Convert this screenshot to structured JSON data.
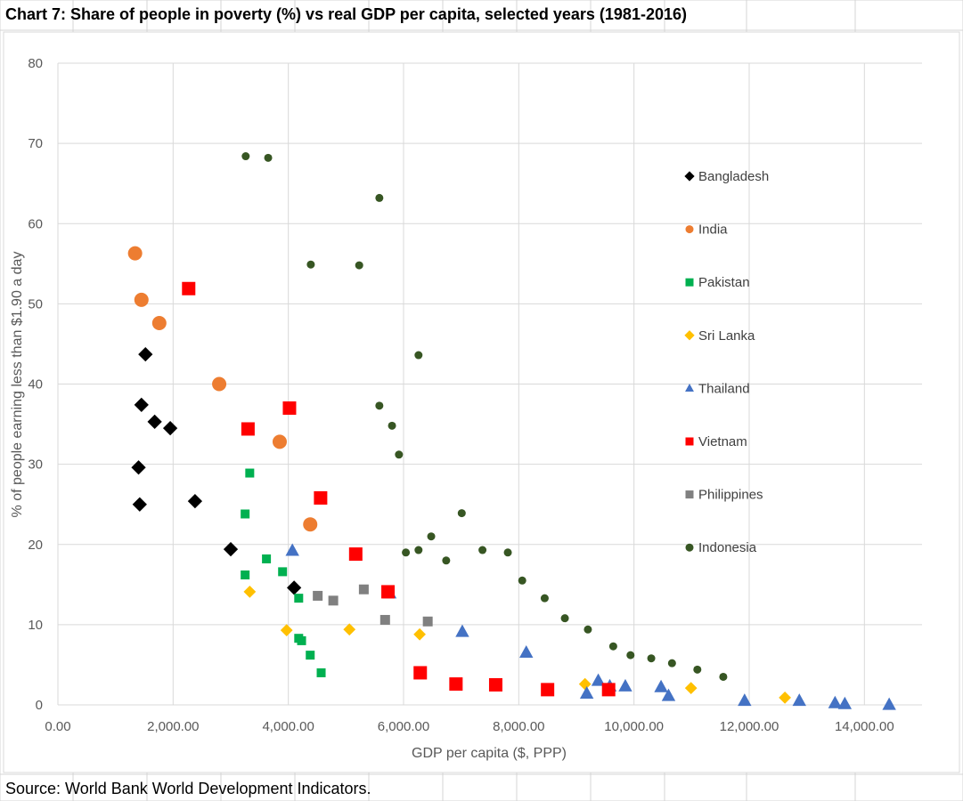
{
  "title": "Chart 7: Share of people in poverty (%) vs real GDP per capita, selected years (1981-2016)",
  "source": "Source: World Bank World Development Indicators.",
  "chart_data": {
    "type": "scatter",
    "title": "Chart 7: Share of people in poverty (%) vs real GDP per capita, selected years (1981-2016)",
    "xlabel": "GDP per capita ($, PPP)",
    "ylabel": "% of people earning less than $1.90 a day",
    "xlim": [
      0,
      15000
    ],
    "ylim": [
      0,
      80
    ],
    "x_ticks": [
      0,
      2000,
      4000,
      6000,
      8000,
      10000,
      12000,
      14000
    ],
    "x_tick_labels": [
      "0.00",
      "2,000.00",
      "4,000.00",
      "6,000.00",
      "8,000.00",
      "10,000.00",
      "12,000.00",
      "14,000.00"
    ],
    "y_ticks": [
      0,
      10,
      20,
      30,
      40,
      50,
      60,
      70,
      80
    ],
    "y_tick_labels": [
      "0",
      "10",
      "20",
      "30",
      "40",
      "50",
      "60",
      "70",
      "80"
    ],
    "grid": true,
    "legend_position": "right",
    "series": [
      {
        "name": "Bangladesh",
        "marker": "diamond",
        "color": "#000000",
        "points": [
          [
            1520,
            43.7
          ],
          [
            1450,
            37.4
          ],
          [
            1680,
            35.3
          ],
          [
            1950,
            34.5
          ],
          [
            1400,
            29.6
          ],
          [
            1420,
            25.0
          ],
          [
            2380,
            25.4
          ],
          [
            3000,
            19.4
          ],
          [
            4100,
            14.6
          ]
        ]
      },
      {
        "name": "India",
        "marker": "circle",
        "color": "#ED7D31",
        "points": [
          [
            1340,
            56.3
          ],
          [
            1450,
            50.5
          ],
          [
            1760,
            47.6
          ],
          [
            2800,
            40.0
          ],
          [
            3850,
            32.8
          ],
          [
            4380,
            22.5
          ]
        ]
      },
      {
        "name": "Pakistan",
        "marker": "square",
        "color": "#00B050",
        "points": [
          [
            3330,
            28.9
          ],
          [
            3250,
            23.8
          ],
          [
            3620,
            18.2
          ],
          [
            3900,
            16.6
          ],
          [
            3250,
            16.2
          ],
          [
            4180,
            13.3
          ],
          [
            4180,
            8.3
          ],
          [
            4230,
            8.0
          ],
          [
            4380,
            6.2
          ],
          [
            4570,
            4.0
          ]
        ]
      },
      {
        "name": "Sri Lanka",
        "marker": "diamond",
        "color": "#FFC000",
        "points": [
          [
            3330,
            14.1
          ],
          [
            3970,
            9.3
          ],
          [
            5060,
            9.4
          ],
          [
            6280,
            8.8
          ],
          [
            9150,
            2.6
          ],
          [
            10990,
            2.1
          ],
          [
            12620,
            0.9
          ]
        ]
      },
      {
        "name": "Thailand",
        "marker": "triangle",
        "color": "#4472C4",
        "points": [
          [
            4070,
            19.2
          ],
          [
            5760,
            13.9
          ],
          [
            7020,
            9.1
          ],
          [
            8130,
            6.5
          ],
          [
            9380,
            3.0
          ],
          [
            9580,
            2.3
          ],
          [
            9850,
            2.3
          ],
          [
            10470,
            2.2
          ],
          [
            9180,
            1.4
          ],
          [
            10600,
            1.1
          ],
          [
            11920,
            0.5
          ],
          [
            12870,
            0.5
          ],
          [
            13490,
            0.2
          ],
          [
            13660,
            0.1
          ],
          [
            14430,
            0.0
          ]
        ]
      },
      {
        "name": "Vietnam",
        "marker": "square",
        "color": "#FF0000",
        "points": [
          [
            2270,
            51.9
          ],
          [
            4020,
            37.0
          ],
          [
            3300,
            34.4
          ],
          [
            4560,
            25.8
          ],
          [
            5170,
            18.8
          ],
          [
            5730,
            14.1
          ],
          [
            6290,
            4.0
          ],
          [
            6910,
            2.6
          ],
          [
            7600,
            2.5
          ],
          [
            8500,
            1.9
          ],
          [
            9560,
            1.9
          ]
        ]
      },
      {
        "name": "Philippines",
        "marker": "square",
        "color": "#808080",
        "points": [
          [
            5310,
            14.4
          ],
          [
            4510,
            13.6
          ],
          [
            4780,
            13.0
          ],
          [
            5680,
            10.6
          ],
          [
            6420,
            10.4
          ]
        ]
      },
      {
        "name": "Indonesia",
        "marker": "circle",
        "color": "#375623",
        "points": [
          [
            3260,
            68.4
          ],
          [
            3650,
            68.2
          ],
          [
            5580,
            63.2
          ],
          [
            4390,
            54.9
          ],
          [
            5230,
            54.8
          ],
          [
            6260,
            43.6
          ],
          [
            5580,
            37.3
          ],
          [
            5800,
            34.8
          ],
          [
            5920,
            31.2
          ],
          [
            7010,
            23.9
          ],
          [
            6480,
            21.0
          ],
          [
            6040,
            19.0
          ],
          [
            6260,
            19.3
          ],
          [
            6740,
            18.0
          ],
          [
            7370,
            19.3
          ],
          [
            7810,
            19.0
          ],
          [
            8060,
            15.5
          ],
          [
            8450,
            13.3
          ],
          [
            8800,
            10.8
          ],
          [
            9200,
            9.4
          ],
          [
            9640,
            7.3
          ],
          [
            9940,
            6.2
          ],
          [
            10300,
            5.8
          ],
          [
            10660,
            5.2
          ],
          [
            11100,
            4.4
          ],
          [
            11550,
            3.5
          ]
        ]
      }
    ]
  }
}
